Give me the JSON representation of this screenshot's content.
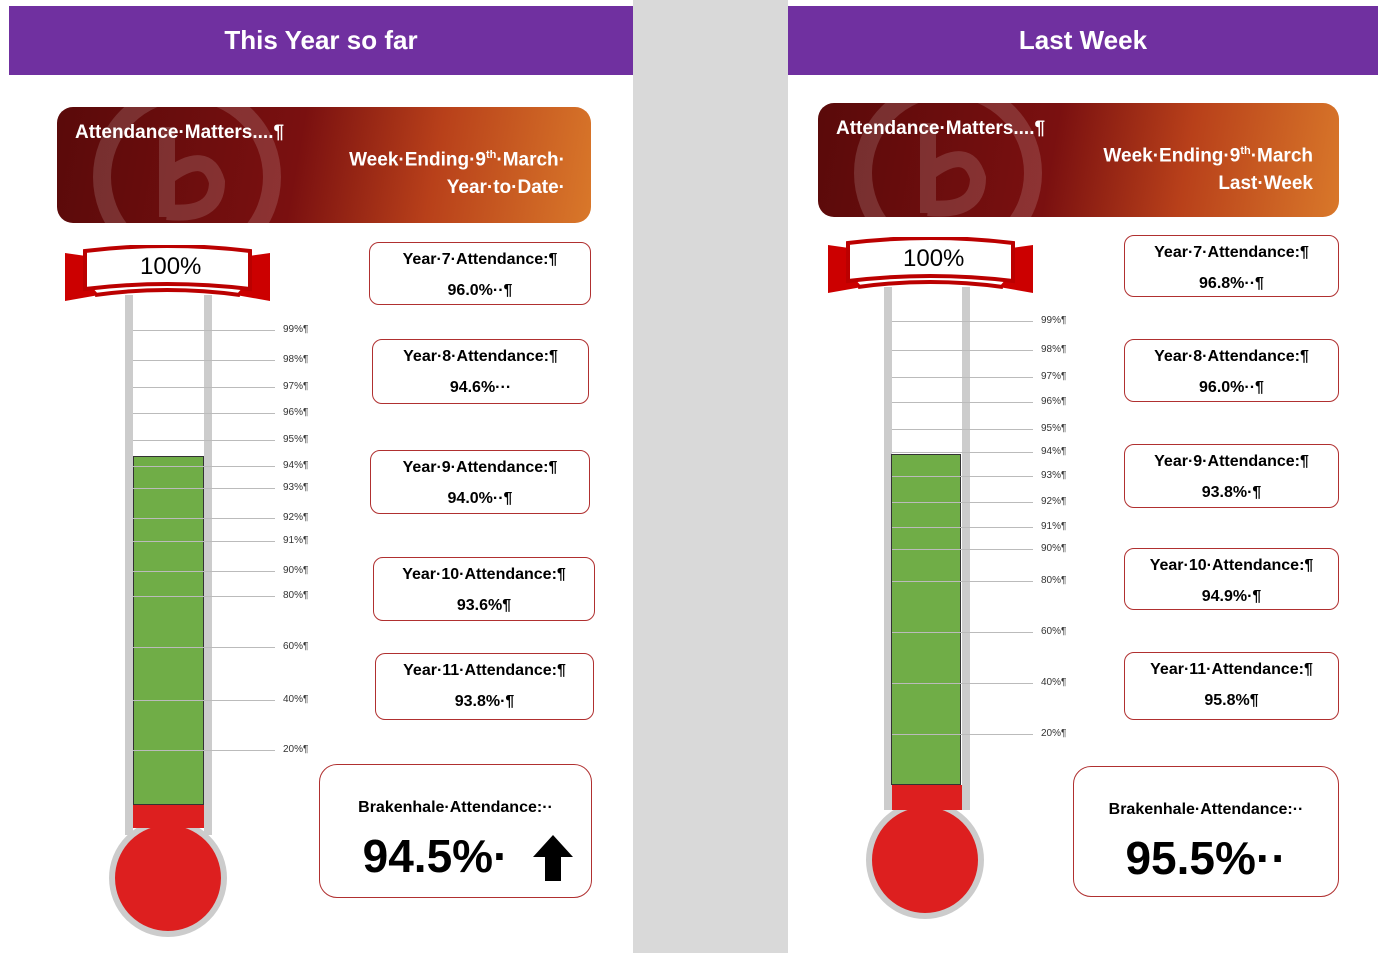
{
  "panels": [
    {
      "header": "This Year so far",
      "banner": {
        "title": "Attendance·Matters....¶",
        "week": "Week·Ending·9",
        "week_sup": "th",
        "week_end": "·March·",
        "period": "Year·to·Date·"
      },
      "flag": "100%",
      "scale": [
        "99%¶",
        "98%¶",
        "97%¶",
        "96%¶",
        "95%¶",
        "94%¶",
        "93%¶",
        "92%¶",
        "91%¶",
        "90%¶",
        "80%¶",
        "60%¶",
        "40%¶",
        "20%¶"
      ],
      "years": [
        {
          "label": "Year·7·Attendance:¶",
          "value": "96.0%··¶"
        },
        {
          "label": "Year·8·Attendance:¶",
          "value": "94.6%···"
        },
        {
          "label": "Year·9·Attendance:¶",
          "value": "94.0%··¶"
        },
        {
          "label": "Year·10·Attendance:¶",
          "value": "93.6%¶"
        },
        {
          "label": "Year·11·Attendance:¶",
          "value": "93.8%·¶"
        }
      ],
      "total": {
        "label": "Brakenhale·Attendance:··",
        "value": "94.5%·"
      }
    },
    {
      "header": "Last Week",
      "banner": {
        "title": "Attendance·Matters....¶",
        "week": "Week·Ending·9",
        "week_sup": "th",
        "week_end": "·March",
        "period": "Last·Week"
      },
      "flag": "100%",
      "scale": [
        "99%¶",
        "98%¶",
        "97%¶",
        "96%¶",
        "95%¶",
        "94%¶",
        "93%¶",
        "92%¶",
        "91%¶",
        "90%¶",
        "80%¶",
        "60%¶",
        "40%¶",
        "20%¶"
      ],
      "years": [
        {
          "label": "Year·7·Attendance:¶",
          "value": "96.8%··¶"
        },
        {
          "label": "Year·8·Attendance:¶",
          "value": "96.0%··¶"
        },
        {
          "label": "Year·9·Attendance:¶",
          "value": "93.8%·¶"
        },
        {
          "label": "Year·10·Attendance:¶",
          "value": "94.9%·¶"
        },
        {
          "label": "Year·11·Attendance:¶",
          "value": "95.8%¶"
        }
      ],
      "total": {
        "label": "Brakenhale·Attendance:··",
        "value": "95.5%··"
      }
    }
  ]
}
